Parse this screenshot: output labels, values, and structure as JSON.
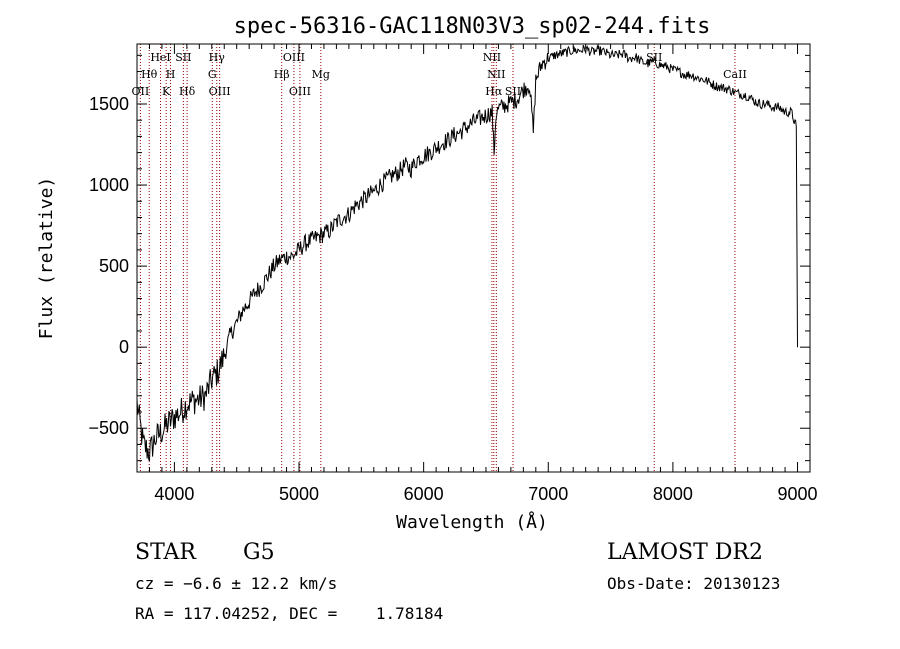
{
  "chart_data": {
    "type": "line",
    "title": "spec-56316-GAC118N03V3_sp02-244.fits",
    "xlabel": "Wavelength (Å)",
    "ylabel": "Flux (relative)",
    "xlim": [
      3700,
      9100
    ],
    "ylim": [
      -770,
      1870
    ],
    "xticks": [
      4000,
      5000,
      6000,
      7000,
      8000,
      9000
    ],
    "yticks": [
      -500,
      0,
      500,
      1000,
      1500
    ],
    "grid": false,
    "series": [
      {
        "x": [
          3700,
          3750,
          3800,
          3850,
          3900,
          3950,
          4000,
          4050,
          4100,
          4150,
          4200,
          4250,
          4300,
          4350,
          4400,
          4450,
          4500,
          4550,
          4600,
          4650,
          4700,
          4750,
          4800,
          4850,
          4900,
          4950,
          5000,
          5050,
          5100,
          5150,
          5200,
          5250,
          5300,
          5350,
          5400,
          5450,
          5500,
          5550,
          5600,
          5650,
          5700,
          5750,
          5800,
          5850,
          5900,
          5950,
          6000,
          6050,
          6100,
          6150,
          6200,
          6250,
          6300,
          6350,
          6400,
          6450,
          6500,
          6550,
          6565,
          6580,
          6600,
          6650,
          6700,
          6750,
          6800,
          6850,
          6880,
          6900,
          6950,
          7000,
          7050,
          7100,
          7150,
          7200,
          7250,
          7300,
          7350,
          7400,
          7450,
          7500,
          7550,
          7600,
          7650,
          7700,
          7750,
          7800,
          7850,
          7900,
          7950,
          8000,
          8050,
          8100,
          8150,
          8200,
          8250,
          8300,
          8350,
          8400,
          8450,
          8500,
          8550,
          8600,
          8650,
          8700,
          8750,
          8800,
          8850,
          8900,
          8950,
          8990,
          9000
        ],
        "y": [
          -350,
          -600,
          -650,
          -560,
          -520,
          -470,
          -430,
          -400,
          -350,
          -330,
          -320,
          -300,
          -200,
          -150,
          -50,
          80,
          150,
          230,
          280,
          340,
          380,
          440,
          500,
          540,
          560,
          560,
          600,
          640,
          660,
          680,
          700,
          720,
          770,
          800,
          820,
          870,
          900,
          930,
          960,
          1000,
          1030,
          1060,
          1080,
          1120,
          1100,
          1160,
          1180,
          1200,
          1230,
          1260,
          1280,
          1310,
          1330,
          1360,
          1390,
          1410,
          1430,
          1450,
          1200,
          1430,
          1470,
          1490,
          1510,
          1530,
          1590,
          1620,
          1330,
          1650,
          1750,
          1780,
          1800,
          1810,
          1820,
          1830,
          1830,
          1840,
          1820,
          1830,
          1820,
          1800,
          1800,
          1810,
          1780,
          1790,
          1760,
          1750,
          1760,
          1740,
          1730,
          1710,
          1700,
          1680,
          1680,
          1660,
          1650,
          1630,
          1610,
          1600,
          1590,
          1570,
          1560,
          1550,
          1520,
          1500,
          1500,
          1480,
          1480,
          1450,
          1450,
          1360,
          0
        ]
      }
    ],
    "line_labels": [
      {
        "text": "OII",
        "x": 3727,
        "row": 3
      },
      {
        "text": "Hθ",
        "x": 3798,
        "row": 2
      },
      {
        "text": "HeI",
        "x": 3889,
        "row": 1
      },
      {
        "text": "K",
        "x": 3934,
        "row": 3
      },
      {
        "text": "H",
        "x": 3969,
        "row": 2
      },
      {
        "text": "SII",
        "x": 4072,
        "row": 1
      },
      {
        "text": "Hδ",
        "x": 4102,
        "row": 3
      },
      {
        "text": "Hγ",
        "x": 4340,
        "row": 1
      },
      {
        "text": "G",
        "x": 4304,
        "row": 2
      },
      {
        "text": "OIII",
        "x": 4363,
        "row": 3
      },
      {
        "text": "Hβ",
        "x": 4861,
        "row": 2
      },
      {
        "text": "OIII",
        "x": 4959,
        "row": 1
      },
      {
        "text": "OIII",
        "x": 5007,
        "row": 3
      },
      {
        "text": "Mg",
        "x": 5175,
        "row": 2
      },
      {
        "text": "NII",
        "x": 6548,
        "row": 1
      },
      {
        "text": "NII",
        "x": 6583,
        "row": 2
      },
      {
        "text": "Hα",
        "x": 6563,
        "row": 3
      },
      {
        "text": "SII",
        "x": 6717,
        "row": 3
      },
      {
        "text": "SII",
        "x": 7850,
        "row": 1
      },
      {
        "text": "CaII",
        "x": 8498,
        "row": 2
      }
    ],
    "line_markers": [
      3727,
      3798,
      3889,
      3934,
      3969,
      4072,
      4102,
      4304,
      4340,
      4363,
      4861,
      4959,
      5007,
      5175,
      6548,
      6563,
      6583,
      6717,
      7850,
      8498
    ],
    "marker_color": "#990000"
  },
  "info": {
    "object_class": "STAR",
    "subclass": "G5",
    "cz": "cz = −6.6 ± 12.2 km/s",
    "radec": "RA = 117.04252, DEC =    1.78184",
    "survey": "LAMOST DR2",
    "obs_date": "Obs-Date: 20130123"
  }
}
